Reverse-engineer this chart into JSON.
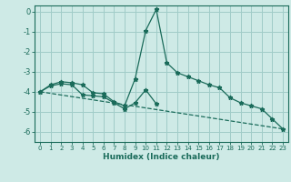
{
  "xlabel": "Humidex (Indice chaleur)",
  "bg_color": "#ceeae6",
  "grid_color": "#a0ccc8",
  "line_color": "#1a6b5a",
  "xlim": [
    -0.5,
    23.5
  ],
  "ylim": [
    -6.5,
    0.3
  ],
  "yticks": [
    0,
    -1,
    -2,
    -3,
    -4,
    -5,
    -6
  ],
  "xticks": [
    0,
    1,
    2,
    3,
    4,
    5,
    6,
    7,
    8,
    9,
    10,
    11,
    12,
    13,
    14,
    15,
    16,
    17,
    18,
    19,
    20,
    21,
    22,
    23
  ],
  "line1_x": [
    0,
    1,
    2,
    3,
    4,
    5,
    6,
    7,
    8,
    9,
    10,
    11,
    12,
    13,
    14,
    15,
    16,
    17,
    18,
    19,
    20,
    21,
    22,
    23
  ],
  "line1_y": [
    -4.0,
    -3.65,
    -3.5,
    -3.55,
    -3.65,
    -4.05,
    -4.1,
    -4.5,
    -4.7,
    -3.35,
    -0.95,
    0.1,
    -2.55,
    -3.05,
    -3.25,
    -3.45,
    -3.65,
    -3.8,
    -4.3,
    -4.55,
    -4.7,
    -4.85,
    -5.35,
    -5.85
  ],
  "line2_x": [
    0,
    1,
    2,
    3,
    4,
    5,
    6,
    7,
    8,
    9,
    10,
    11
  ],
  "line2_y": [
    -4.0,
    -3.7,
    -3.6,
    -3.65,
    -4.15,
    -4.2,
    -4.25,
    -4.55,
    -4.85,
    -4.55,
    -3.9,
    -4.6
  ],
  "line3_x": [
    0,
    23
  ],
  "line3_y": [
    -4.0,
    -5.85
  ]
}
